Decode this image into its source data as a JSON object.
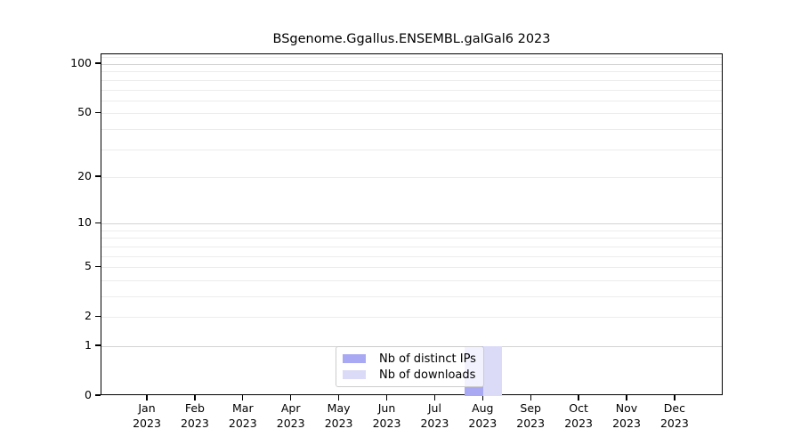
{
  "chart_data": {
    "type": "bar",
    "title": "BSgenome.Ggallus.ENSEMBL.galGal6 2023",
    "year": "2023",
    "categories": [
      "Jan",
      "Feb",
      "Mar",
      "Apr",
      "May",
      "Jun",
      "Jul",
      "Aug",
      "Sep",
      "Oct",
      "Nov",
      "Dec"
    ],
    "series": [
      {
        "name": "Nb of distinct IPs",
        "color": "#a9a9f3",
        "values": [
          0,
          0,
          0,
          0,
          0,
          0,
          0,
          1,
          0,
          0,
          0,
          0
        ]
      },
      {
        "name": "Nb of downloads",
        "color": "#dbdbf8",
        "values": [
          0,
          0,
          0,
          0,
          0,
          0,
          0,
          1,
          0,
          0,
          0,
          0
        ]
      }
    ],
    "y_axis": {
      "scale": "log1p",
      "tick_values": [
        0,
        1,
        2,
        5,
        10,
        20,
        50,
        100
      ],
      "major_grid_values": [
        1,
        10,
        100
      ],
      "minor_grid_values": [
        2,
        3,
        4,
        5,
        6,
        7,
        8,
        9,
        20,
        30,
        40,
        50,
        60,
        70,
        80,
        90,
        110
      ],
      "min": 0,
      "max": 115
    },
    "legend": {
      "position": "lower center"
    },
    "grid": true
  },
  "colors": {
    "background": "#ffffff",
    "spine": "#000000",
    "major_grid": "#d4d4d4",
    "minor_grid": "#ececec",
    "legend_border": "#cccccc",
    "text": "#000000"
  }
}
